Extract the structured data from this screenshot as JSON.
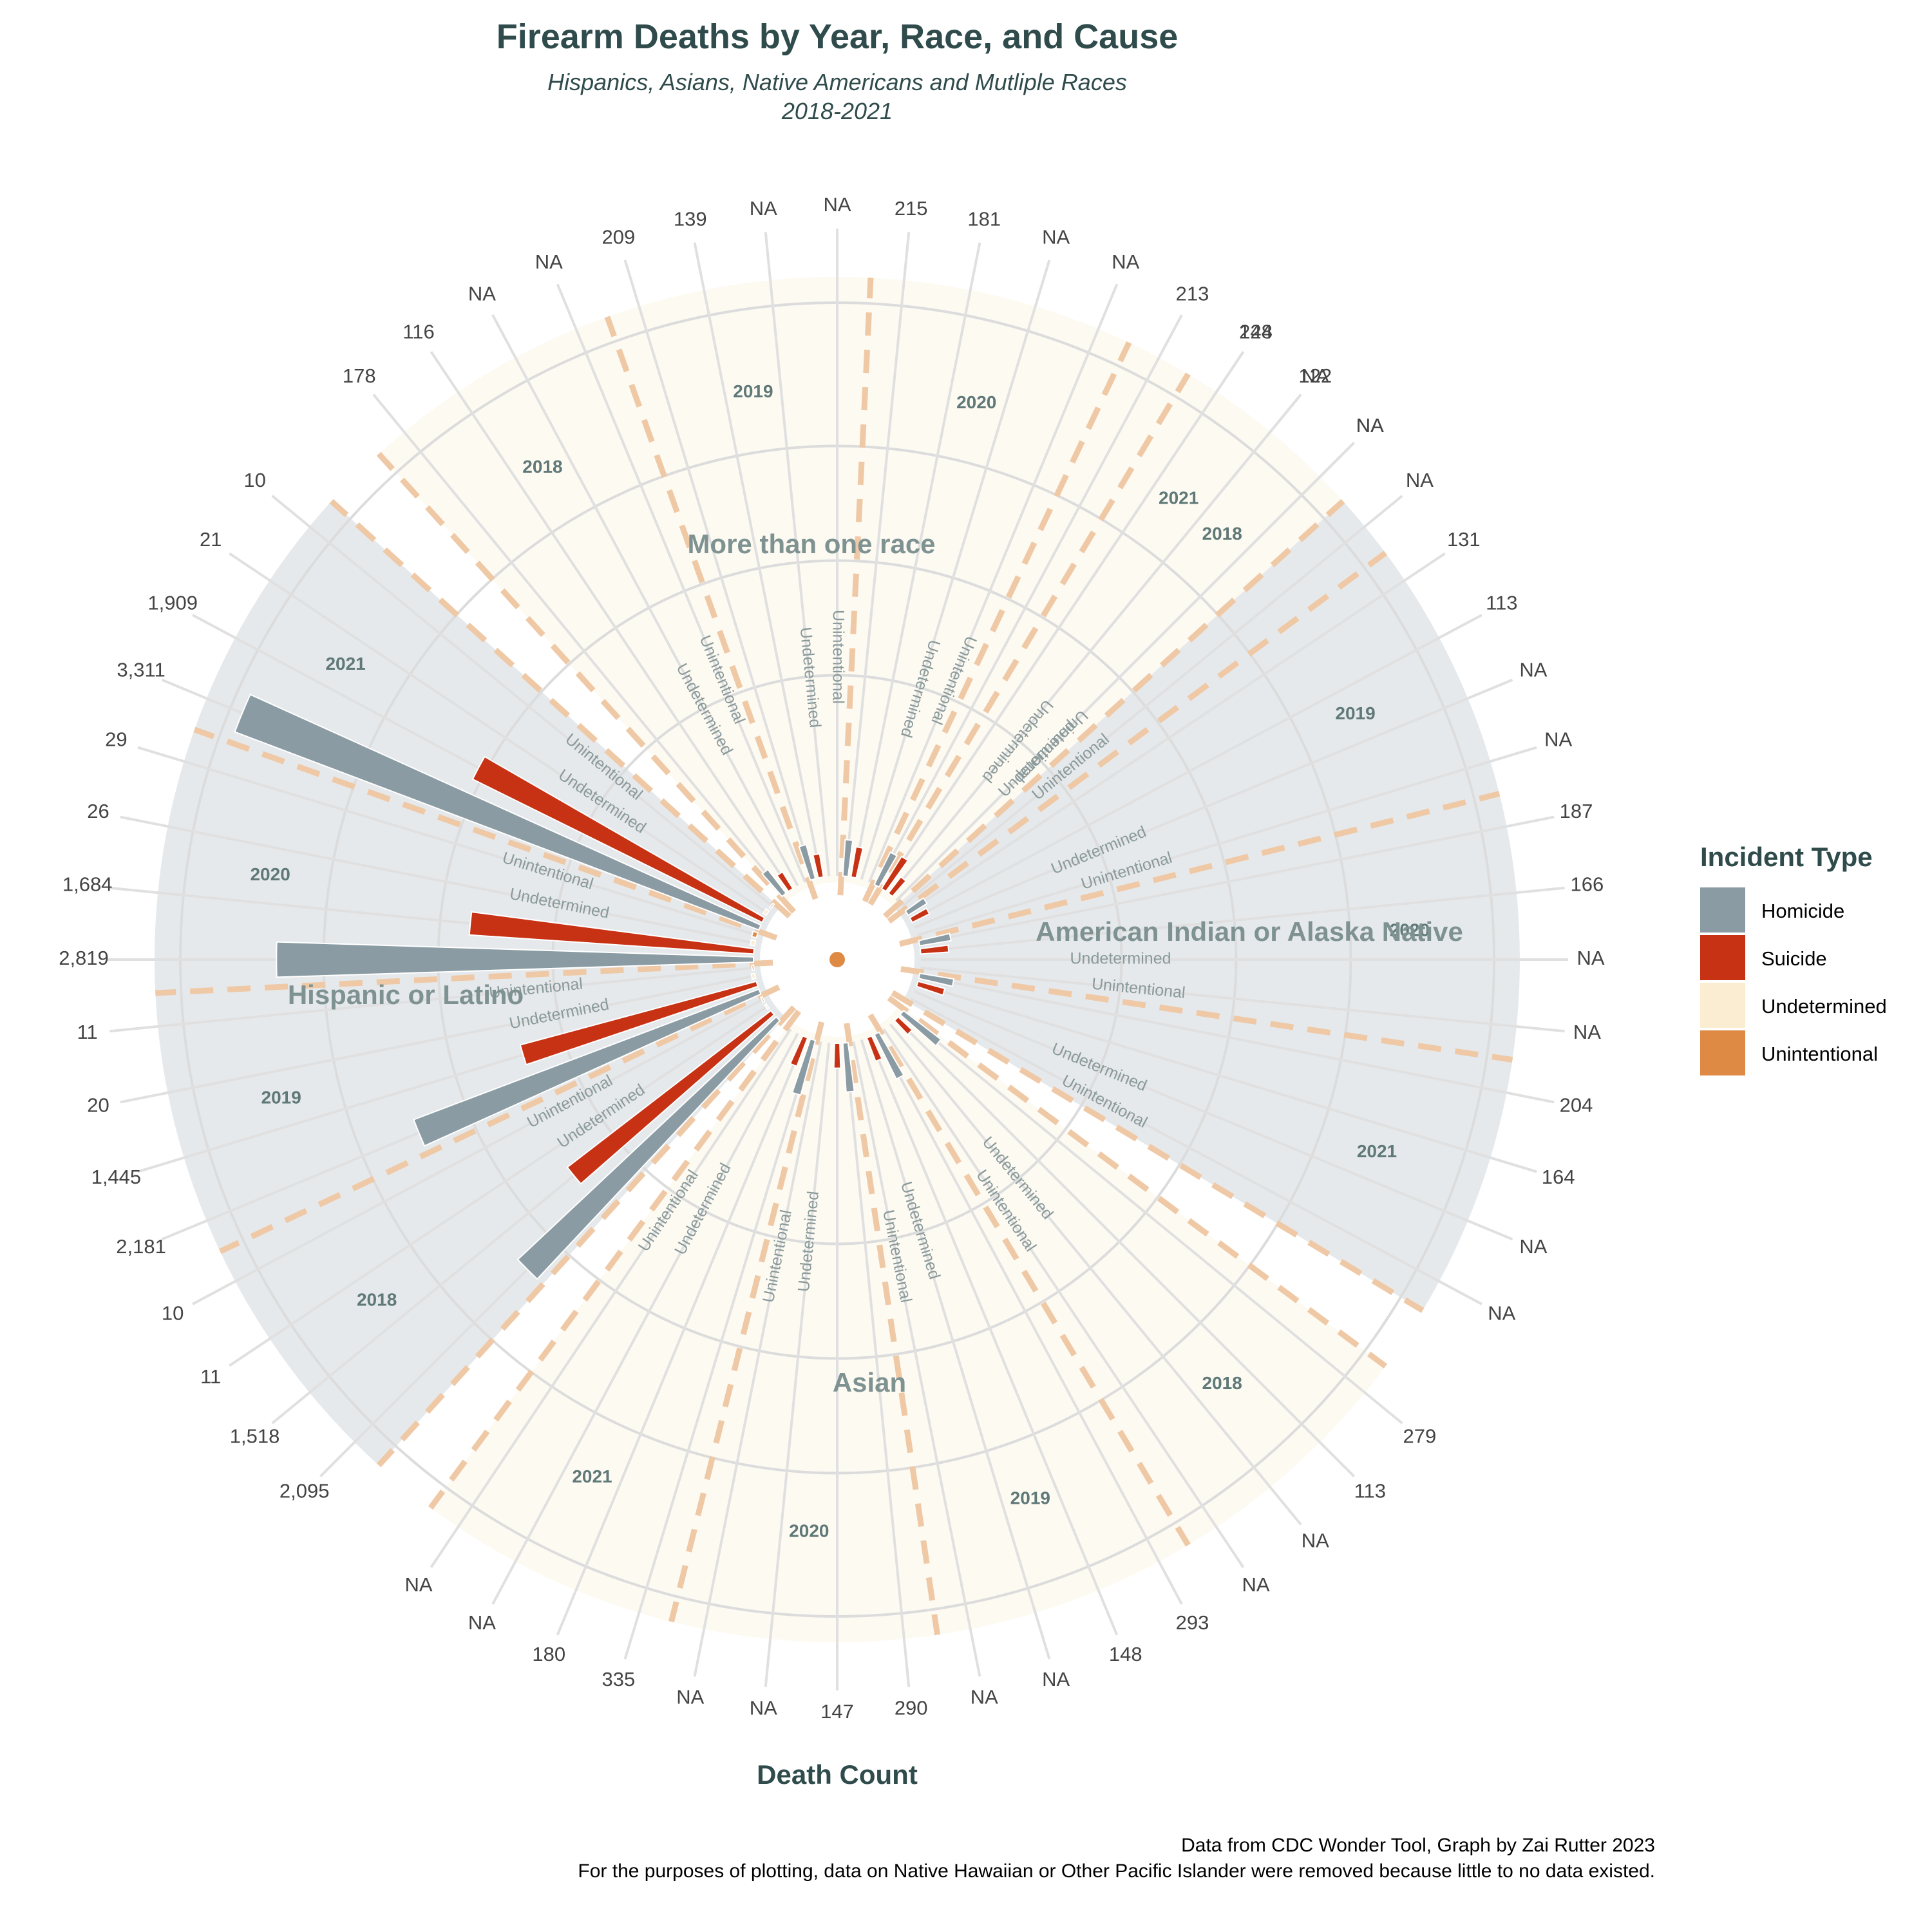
{
  "title": "Firearm Deaths by Year, Race, and Cause",
  "subtitle_line1": "Hispanics, Asians, Native Americans and Mutliple Races",
  "subtitle_line2": "2018-2021",
  "xlabel": "Death Count",
  "caption_line1": "Data from CDC Wonder Tool, Graph by Zai Rutter 2023",
  "caption_line2": "For the purposes of plotting, data on Native Hawaiian or Other Pacific Islander were removed because little to no data existed.",
  "legend": {
    "title": "Incident Type",
    "items": [
      {
        "label": "Homicide",
        "color": "#8a9ba3"
      },
      {
        "label": "Suicide",
        "color": "#c83214"
      },
      {
        "label": "Undetermined",
        "color": "#faedd2"
      },
      {
        "label": "Unintentional",
        "color": "#df8a44"
      }
    ]
  },
  "chart_data": {
    "type": "bar",
    "coordinate_system": "polar",
    "causes": [
      "Homicide",
      "Suicide",
      "Undetermined",
      "Unintentional"
    ],
    "groups": [
      {
        "race": "American Indian or Alaska Native",
        "years": [
          {
            "year": "2018",
            "values": {
              "Homicide": 148,
              "Suicide": 122,
              "Undetermined": "NA",
              "Unintentional": "NA"
            }
          },
          {
            "year": "2019",
            "values": {
              "Homicide": 131,
              "Suicide": 113,
              "Undetermined": "NA",
              "Unintentional": "NA"
            }
          },
          {
            "year": "2020",
            "values": {
              "Homicide": 187,
              "Suicide": 166,
              "Undetermined": "NA",
              "Unintentional": "NA"
            }
          },
          {
            "year": "2021",
            "values": {
              "Homicide": 204,
              "Suicide": 164,
              "Undetermined": "NA",
              "Unintentional": "NA"
            }
          }
        ]
      },
      {
        "race": "Asian",
        "years": [
          {
            "year": "2018",
            "values": {
              "Homicide": 279,
              "Suicide": 113,
              "Undetermined": "NA",
              "Unintentional": "NA"
            }
          },
          {
            "year": "2019",
            "values": {
              "Homicide": 293,
              "Suicide": 148,
              "Undetermined": "NA",
              "Unintentional": "NA"
            }
          },
          {
            "year": "2020",
            "values": {
              "Homicide": 290,
              "Suicide": 147,
              "Undetermined": "NA",
              "Unintentional": "NA"
            }
          },
          {
            "year": "2021",
            "values": {
              "Homicide": 335,
              "Suicide": 180,
              "Undetermined": "NA",
              "Unintentional": "NA"
            }
          }
        ]
      },
      {
        "race": "Hispanic or Latino",
        "years": [
          {
            "year": "2018",
            "values": {
              "Homicide": 2095,
              "Suicide": 1518,
              "Undetermined": 11,
              "Unintentional": 10
            }
          },
          {
            "year": "2019",
            "values": {
              "Homicide": 2181,
              "Suicide": 1445,
              "Undetermined": 20,
              "Unintentional": 11
            }
          },
          {
            "year": "2020",
            "values": {
              "Homicide": 2819,
              "Suicide": 1684,
              "Undetermined": 26,
              "Unintentional": 29
            }
          },
          {
            "year": "2021",
            "values": {
              "Homicide": 3311,
              "Suicide": 1909,
              "Undetermined": 21,
              "Unintentional": 10
            }
          }
        ]
      },
      {
        "race": "More than one race",
        "years": [
          {
            "year": "2018",
            "values": {
              "Homicide": 178,
              "Suicide": 116,
              "Undetermined": "NA",
              "Unintentional": "NA"
            }
          },
          {
            "year": "2019",
            "values": {
              "Homicide": 209,
              "Suicide": 139,
              "Undetermined": "NA",
              "Unintentional": "NA"
            }
          },
          {
            "year": "2020",
            "values": {
              "Homicide": 215,
              "Suicide": 181,
              "Undetermined": "NA",
              "Unintentional": "NA"
            }
          },
          {
            "year": "2021",
            "values": {
              "Homicide": 213,
              "Suicide": 224,
              "Undetermined": "NA",
              "Unintentional": "NA"
            }
          }
        ]
      }
    ],
    "max_value": 3311,
    "grid": true
  }
}
